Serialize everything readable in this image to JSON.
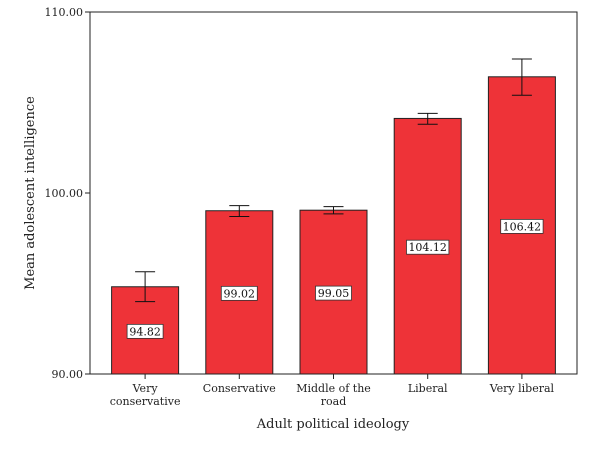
{
  "chart_data": {
    "type": "bar",
    "xlabel": "Adult political ideology",
    "ylabel": "Mean adolescent intelligence",
    "ylim": [
      90,
      110
    ],
    "yticks": [
      90,
      100,
      110
    ],
    "ytick_labels": [
      "90.00",
      "100.00",
      "110.00"
    ],
    "grid": false,
    "bar_color": "#ee3338",
    "categories": [
      [
        "Very",
        "conservative"
      ],
      [
        "Conservative"
      ],
      [
        "Middle of the",
        "road"
      ],
      [
        "Liberal"
      ],
      [
        "Very liberal"
      ]
    ],
    "values": [
      94.82,
      99.02,
      99.05,
      104.12,
      106.42
    ],
    "value_labels": [
      "94.82",
      "99.02",
      "99.05",
      "104.12",
      "106.42"
    ],
    "error_low": [
      94.0,
      98.7,
      98.85,
      103.8,
      105.4
    ],
    "error_high": [
      95.65,
      99.3,
      99.25,
      104.4,
      107.4
    ]
  }
}
